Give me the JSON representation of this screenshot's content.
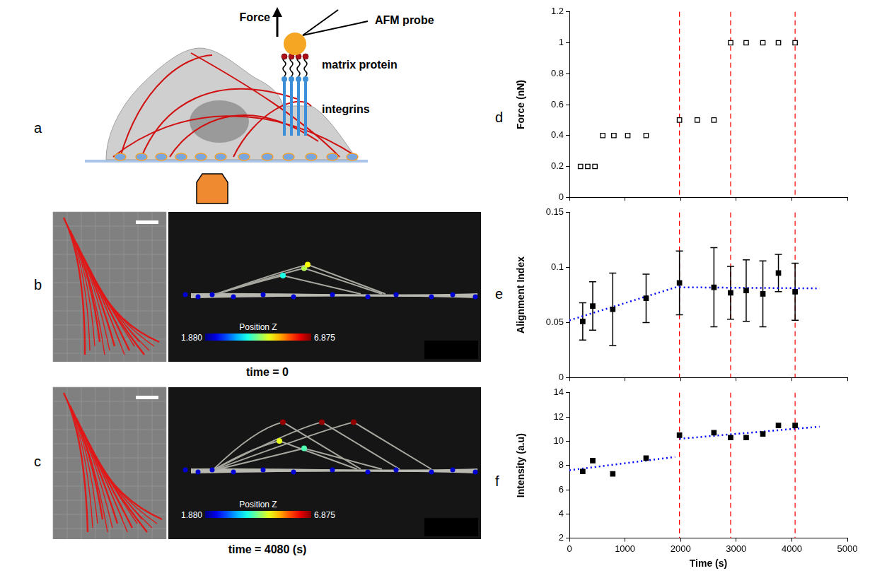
{
  "diagram": {
    "letter": "a",
    "labels": {
      "force": "Force",
      "probe": "AFM probe",
      "matrix": "matrix protein",
      "integrins": "integrins"
    }
  },
  "images": [
    {
      "letter": "b",
      "caption": "time = 0",
      "colorbar": {
        "title": "Position Z",
        "range": [
          1.88,
          6.875
        ],
        "ticks": [
          {
            "value": 1.88,
            "label": "1.880"
          },
          6.875
        ]
      }
    },
    {
      "letter": "c",
      "caption": "time = 4080 (s)",
      "colorbar": {
        "title": "Position Z",
        "range": [
          1.88,
          6.875
        ],
        "ticks": [
          {
            "value": 1.88,
            "label": "1.880"
          },
          6.875
        ]
      }
    }
  ],
  "chart_data": [
    {
      "letter": "d",
      "type": "scatter",
      "y_label": "Force (nN)",
      "x": [
        200,
        330,
        460,
        600,
        800,
        1050,
        1380,
        1980,
        2300,
        2600,
        2900,
        3180,
        3480,
        3760,
        4060
      ],
      "values": [
        0.2,
        0.2,
        0.2,
        0.4,
        0.4,
        0.4,
        0.4,
        0.5,
        0.5,
        0.5,
        1,
        1,
        1,
        1,
        1
      ],
      "color": "#000000",
      "marker": "open_square",
      "xlim": [
        0,
        5000
      ],
      "xticks": [
        0,
        1000,
        2000,
        3000,
        4000,
        5000
      ],
      "ylim": [
        0,
        1.2
      ],
      "yticks": [
        0,
        0.2,
        0.4,
        0.6,
        0.8,
        1,
        1.2
      ],
      "grid": false,
      "tick_labels": "y",
      "vlines": {
        "x": [
          1980,
          2900,
          4060
        ],
        "color": "#ff0000",
        "line_style": "dashed"
      }
    },
    {
      "letter": "e",
      "type": "scatter",
      "y_label": "Alignment Index",
      "x": [
        240,
        420,
        780,
        1380,
        1980,
        2600,
        2900,
        3180,
        3480,
        3760,
        4060
      ],
      "values": [
        0.051,
        0.065,
        0.062,
        0.072,
        0.086,
        0.082,
        0.077,
        0.079,
        0.076,
        0.095,
        0.078
      ],
      "errors": [
        0.017,
        0.022,
        0.033,
        0.022,
        0.029,
        0.036,
        0.024,
        0.028,
        0.03,
        0.017,
        0.026
      ],
      "color": "#000000",
      "marker": "square",
      "xlim": [
        0,
        5000
      ],
      "xticks": [
        0,
        1000,
        2000,
        3000,
        4000,
        5000
      ],
      "ylim": [
        0,
        0.15
      ],
      "yticks": [
        0,
        0.05,
        0.1,
        0.15
      ],
      "grid": false,
      "tick_labels": "y",
      "trend_lines": [
        {
          "x": [
            0,
            1980
          ],
          "values": [
            0.052,
            0.083
          ],
          "color": "#0000ff",
          "line_style": "dotted"
        },
        {
          "x": [
            1980,
            4500
          ],
          "values": [
            0.082,
            0.081
          ],
          "color": "#0000ff",
          "line_style": "dotted"
        }
      ],
      "vlines": {
        "x": [
          1980,
          2900,
          4060
        ],
        "color": "#ff0000",
        "line_style": "dashed"
      }
    },
    {
      "letter": "f",
      "type": "scatter",
      "x_label": "Time (s)",
      "y_label": "Intensity (a.u)",
      "x": [
        240,
        420,
        780,
        1380,
        1980,
        2600,
        2900,
        3180,
        3480,
        3760,
        4060
      ],
      "values": [
        7.5,
        8.4,
        7.3,
        8.6,
        10.5,
        10.7,
        10.3,
        10.3,
        10.6,
        11.3,
        11.3
      ],
      "color": "#000000",
      "marker": "square",
      "xlim": [
        0,
        5000
      ],
      "xticks": [
        0,
        1000,
        2000,
        3000,
        4000,
        5000
      ],
      "ylim": [
        2,
        14
      ],
      "yticks": [
        2,
        4,
        6,
        8,
        10,
        12,
        14
      ],
      "grid": false,
      "trend_lines": [
        {
          "x": [
            0,
            1900
          ],
          "values": [
            7.6,
            8.7
          ],
          "color": "#0000ff",
          "line_style": "dotted"
        },
        {
          "x": [
            1980,
            4500
          ],
          "values": [
            10.2,
            11.2
          ],
          "color": "#0000ff",
          "line_style": "dotted"
        }
      ],
      "vlines": {
        "x": [
          1980,
          2900,
          4060
        ],
        "color": "#ff0000",
        "line_style": "dashed"
      }
    }
  ]
}
